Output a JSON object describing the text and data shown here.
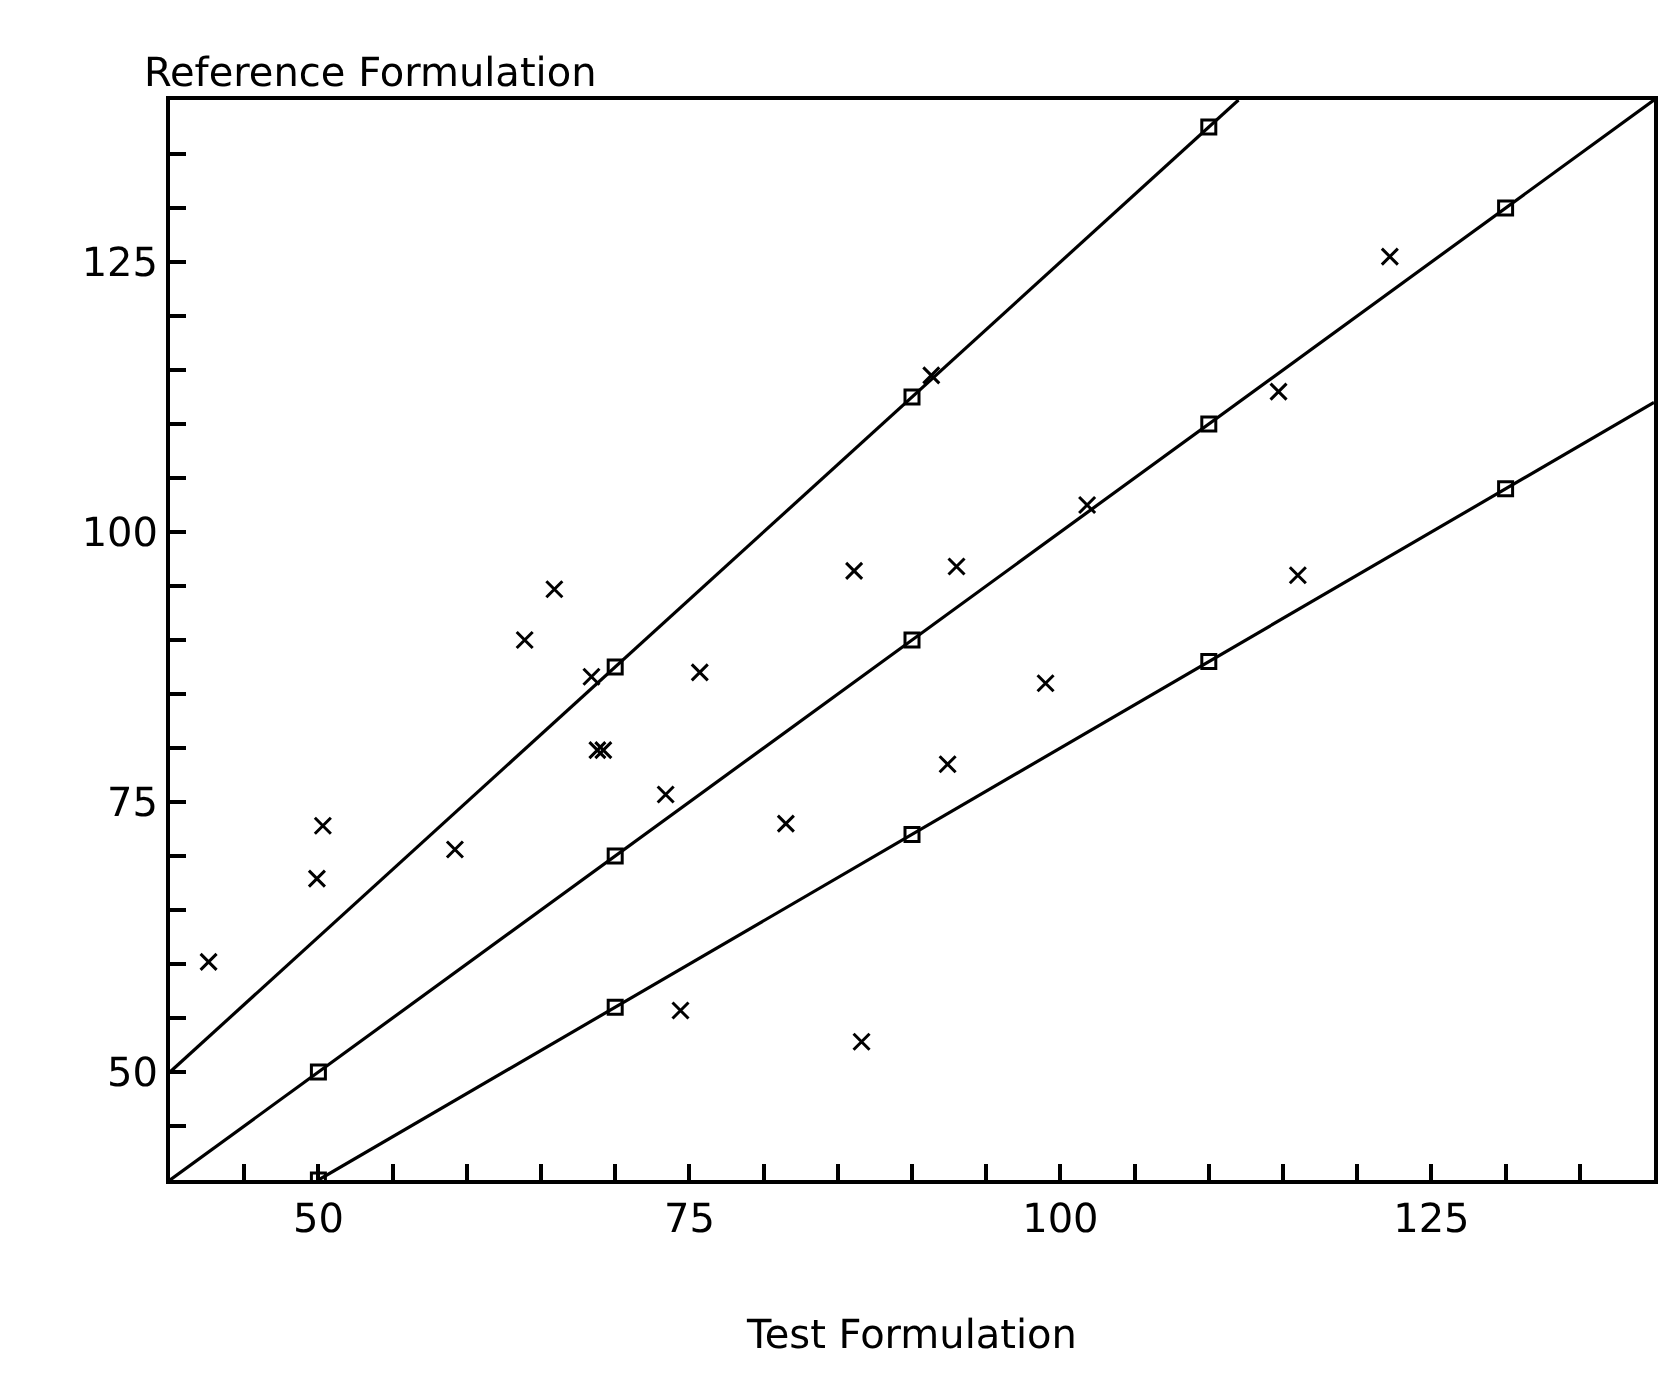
{
  "chart_data": {
    "type": "scatter",
    "xlabel": "Test Formulation",
    "ylabel": "Reference Formulation",
    "xlim": [
      40,
      140
    ],
    "ylim": [
      40,
      140
    ],
    "xticks": [
      {
        "value": 45,
        "label": null
      },
      50,
      {
        "value": 55,
        "label": null
      },
      {
        "value": 60,
        "label": null
      },
      {
        "value": 65,
        "label": null
      },
      {
        "value": 70,
        "label": null
      },
      75,
      {
        "value": 80,
        "label": null
      },
      {
        "value": 85,
        "label": null
      },
      {
        "value": 90,
        "label": null
      },
      {
        "value": 95,
        "label": null
      },
      100,
      {
        "value": 105,
        "label": null
      },
      {
        "value": 110,
        "label": null
      },
      {
        "value": 115,
        "label": null
      },
      {
        "value": 120,
        "label": null
      },
      125,
      {
        "value": 130,
        "label": null
      },
      {
        "value": 135,
        "label": null
      }
    ],
    "yticks": [
      {
        "value": 45,
        "label": null
      },
      50,
      {
        "value": 55,
        "label": null
      },
      {
        "value": 60,
        "label": null
      },
      {
        "value": 65,
        "label": null
      },
      {
        "value": 70,
        "label": null
      },
      75,
      {
        "value": 80,
        "label": null
      },
      {
        "value": 85,
        "label": null
      },
      {
        "value": 90,
        "label": null
      },
      {
        "value": 95,
        "label": null
      },
      100,
      {
        "value": 105,
        "label": null
      },
      {
        "value": 110,
        "label": null
      },
      {
        "value": 115,
        "label": null
      },
      {
        "value": 120,
        "label": null
      },
      125,
      {
        "value": 130,
        "label": null
      },
      {
        "value": 135,
        "label": null
      }
    ],
    "series": [
      {
        "type": "line",
        "color": "#000000",
        "marker": "none",
        "x": [
          40,
          112
        ],
        "values": [
          50,
          140
        ]
      },
      {
        "type": "line",
        "color": "#000000",
        "marker": "none",
        "x": [
          40,
          140
        ],
        "values": [
          40,
          140
        ]
      },
      {
        "type": "line",
        "color": "#000000",
        "marker": "none",
        "x": [
          50,
          140
        ],
        "values": [
          40,
          112
        ]
      },
      {
        "type": "scatter",
        "color": "#000000",
        "marker": "square",
        "x": [
          70,
          90,
          110,
          50,
          70,
          90,
          110,
          130,
          50,
          70,
          90,
          110,
          130
        ],
        "values": [
          87.5,
          112.5,
          137.5,
          50,
          70,
          90,
          110,
          130,
          40,
          56,
          72,
          88,
          104
        ]
      },
      {
        "color": "#000000",
        "marker": "cross",
        "x": [
          42.6,
          49.9,
          50.3,
          59.2,
          63.9,
          65.9,
          68.4,
          68.8,
          69.2,
          73.4,
          75.7,
          74.4,
          81.5,
          86.1,
          86.6,
          91.3,
          92.4,
          93.0,
          99.0,
          101.8,
          114.7,
          116.0,
          122.2
        ],
        "values": [
          60.2,
          67.9,
          72.8,
          70.6,
          90.0,
          94.7,
          86.6,
          79.8,
          79.8,
          75.7,
          87.0,
          55.7,
          73.0,
          96.4,
          52.8,
          114.5,
          78.5,
          96.8,
          86.0,
          102.5,
          113.0,
          96.0,
          125.5
        ]
      }
    ]
  }
}
